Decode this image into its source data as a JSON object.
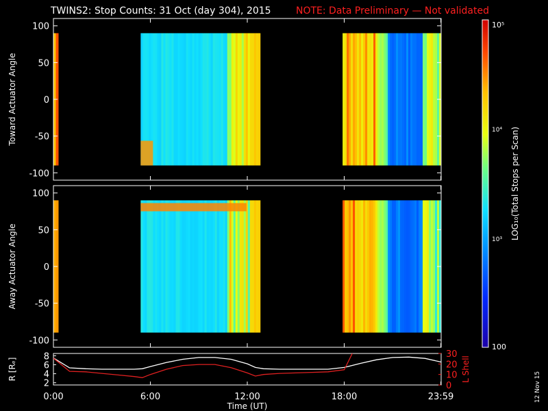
{
  "title": "TWINS2: Stop Counts: 31 Oct (day 304), 2015",
  "note": "NOTE: Data Preliminary — Not validated",
  "date_stamp": "12 Nov 15",
  "colorbar": {
    "label": "LOG₁₀(Total Stops per Scan)",
    "top_label": "10⁵",
    "mid_label_1": "10⁴",
    "mid_label_2": "10³",
    "bottom_label": "100",
    "range": [
      100,
      100000
    ],
    "scale": "log"
  },
  "chart_data": [
    {
      "type": "heatmap",
      "ylabel": "Toward Actuator Angle",
      "xlabel": "",
      "xlim_hours": [
        0,
        24
      ],
      "ylim": [
        -110,
        110
      ],
      "y_ticks": [
        "100",
        "50",
        "0",
        "-50",
        "-100"
      ],
      "y_tick_values": [
        100,
        50,
        0,
        -50,
        -100
      ],
      "data_blocks_hours": [
        [
          0.0,
          0.3
        ],
        [
          5.4,
          12.8
        ],
        [
          17.9,
          24.0
        ]
      ],
      "angle_range": [
        -90,
        90
      ],
      "scale": "log",
      "clim": [
        100,
        100000
      ]
    },
    {
      "type": "heatmap",
      "ylabel": "Away Actuator Angle",
      "xlabel": "",
      "xlim_hours": [
        0,
        24
      ],
      "ylim": [
        -110,
        110
      ],
      "y_ticks": [
        "100",
        "50",
        "0",
        "-50",
        "-100"
      ],
      "y_tick_values": [
        100,
        50,
        0,
        -50,
        -100
      ],
      "data_blocks_hours": [
        [
          0.0,
          0.3
        ],
        [
          5.4,
          12.8
        ],
        [
          17.9,
          24.0
        ]
      ],
      "angle_range": [
        -90,
        90
      ],
      "scale": "log",
      "clim": [
        100,
        100000
      ]
    },
    {
      "type": "line",
      "ylabel": "R [Rₑ]",
      "y2label": "L Shell",
      "xlabel": "Time (UT)",
      "x_ticks": [
        "0:00",
        "6:00",
        "12:00",
        "18:00",
        "23:59"
      ],
      "x_tick_hours": [
        0,
        6,
        12,
        18,
        23.98
      ],
      "y_ticks": [
        "8",
        "6",
        "4",
        "2"
      ],
      "y_tick_values": [
        8,
        6,
        4,
        2
      ],
      "y2_ticks": [
        "30",
        "20",
        "10",
        "0"
      ],
      "y2_tick_values": [
        30,
        20,
        10,
        0
      ],
      "ylim": [
        1.5,
        8.5
      ],
      "y2lim": [
        0,
        30
      ],
      "series": [
        {
          "name": "R",
          "color": "#ffffff",
          "x": [
            0,
            1,
            2,
            3,
            4,
            5,
            5.5,
            6,
            7,
            8,
            9,
            10,
            11,
            12,
            12.5,
            13,
            14,
            15,
            16,
            17,
            18,
            19,
            20,
            21,
            22,
            23,
            24
          ],
          "y": [
            7.5,
            5.3,
            5.1,
            5.0,
            5.0,
            5.0,
            5.1,
            5.6,
            6.5,
            7.2,
            7.6,
            7.6,
            7.2,
            6.2,
            5.4,
            5.1,
            5.0,
            5.0,
            5.0,
            5.0,
            5.4,
            6.3,
            7.1,
            7.6,
            7.7,
            7.4,
            6.6
          ]
        },
        {
          "name": "L Shell",
          "color": "#e02020",
          "x": [
            0,
            1,
            2,
            3,
            4,
            5,
            5.5,
            6,
            7,
            8,
            9,
            10,
            11,
            12,
            12.5,
            13,
            14,
            15,
            16,
            17,
            18,
            18.5
          ],
          "y": [
            25.5,
            13,
            12.5,
            11,
            9.5,
            8,
            7,
            10,
            15,
            18.5,
            19.5,
            19.5,
            16.5,
            11.5,
            8.5,
            10,
            11,
            11.5,
            12,
            12.5,
            14.5,
            30
          ]
        }
      ]
    }
  ]
}
